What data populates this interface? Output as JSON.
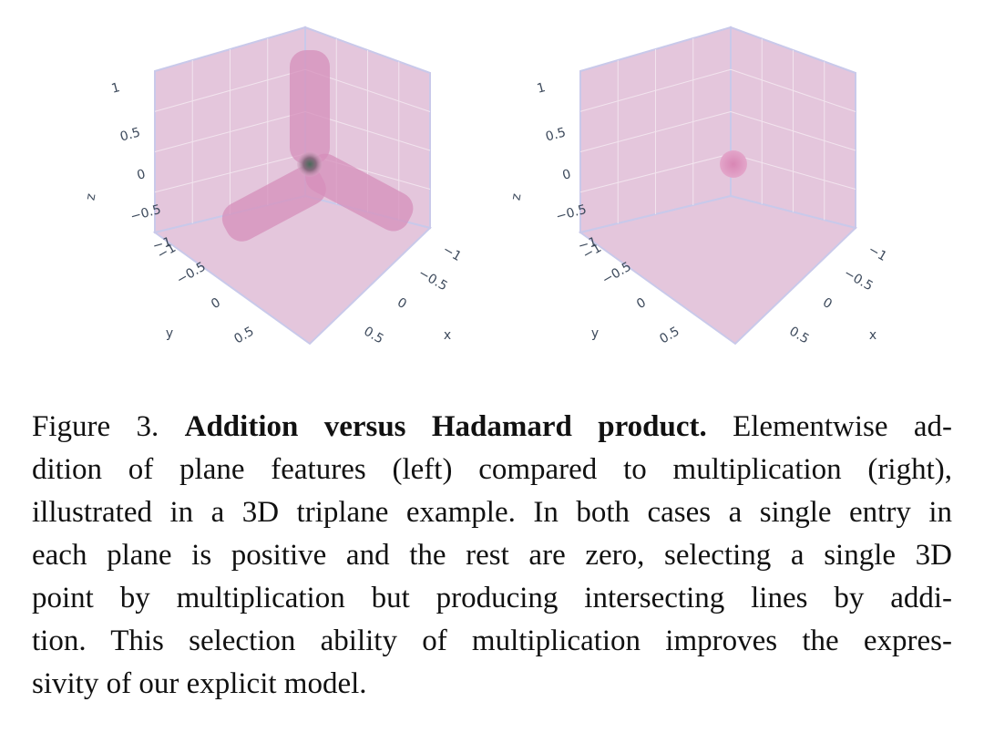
{
  "figure": {
    "panels": [
      {
        "axes": {
          "z": {
            "label": "z",
            "ticks": [
              "1",
              "0.5",
              "0",
              "−0.5",
              "−1"
            ]
          },
          "y": {
            "label": "y",
            "ticks": [
              "−1",
              "−0.5",
              "0",
              "0.5"
            ]
          },
          "x": {
            "label": "x",
            "ticks": [
              "−1",
              "−0.5",
              "0",
              "0.5"
            ]
          }
        }
      },
      {
        "axes": {
          "z": {
            "label": "z",
            "ticks": [
              "1",
              "0.5",
              "0",
              "−0.5",
              "−1"
            ]
          },
          "y": {
            "label": "y",
            "ticks": [
              "−1",
              "−0.5",
              "0",
              "0.5"
            ]
          },
          "x": {
            "label": "x",
            "ticks": [
              "−1",
              "−0.5",
              "0",
              "0.5"
            ]
          }
        }
      }
    ]
  },
  "caption": {
    "label": "Figure 3.",
    "title": "Addition versus Hadamard product.",
    "lines": [
      "Elementwise ad-",
      "dition of plane features (left) compared to multiplication (right),",
      "illustrated in a 3D triplane example. In both cases a single entry in",
      "each plane is positive and the rest are zero, selecting a single 3D",
      "point by multiplication but producing intersecting lines by addi-",
      "tion. This selection ability of multiplication improves the expres-",
      "sivity of our explicit model."
    ]
  }
}
